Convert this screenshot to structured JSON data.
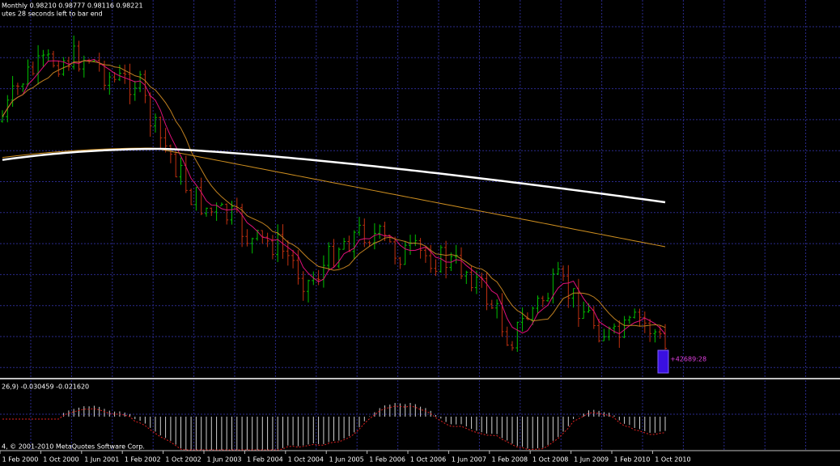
{
  "header": {
    "line1": "Monthly  0.98210 0.98777 0.98116 0.98221",
    "line2": "utes 28 seconds left to bar end"
  },
  "indicator": {
    "label": "26,9) -0.030459 -0.021620"
  },
  "footer": {
    "copyright": "4, © 2001-2010 MetaQuotes Software Corp."
  },
  "timer": "+42689:28",
  "x_axis": {
    "labels": [
      "1 Feb 2000",
      "1 Oct 2000",
      "1 Jun 2001",
      "1 Feb 2002",
      "1 Oct 2002",
      "1 Jun 2003",
      "1 Feb 2004",
      "1 Oct 2004",
      "1 Jun 2005",
      "1 Feb 2006",
      "1 Oct 2006",
      "1 Jun 2007",
      "1 Feb 2008",
      "1 Oct 2008",
      "1 Jun 2009",
      "1 Feb 2010",
      "1 Oct 2010"
    ]
  }
}
